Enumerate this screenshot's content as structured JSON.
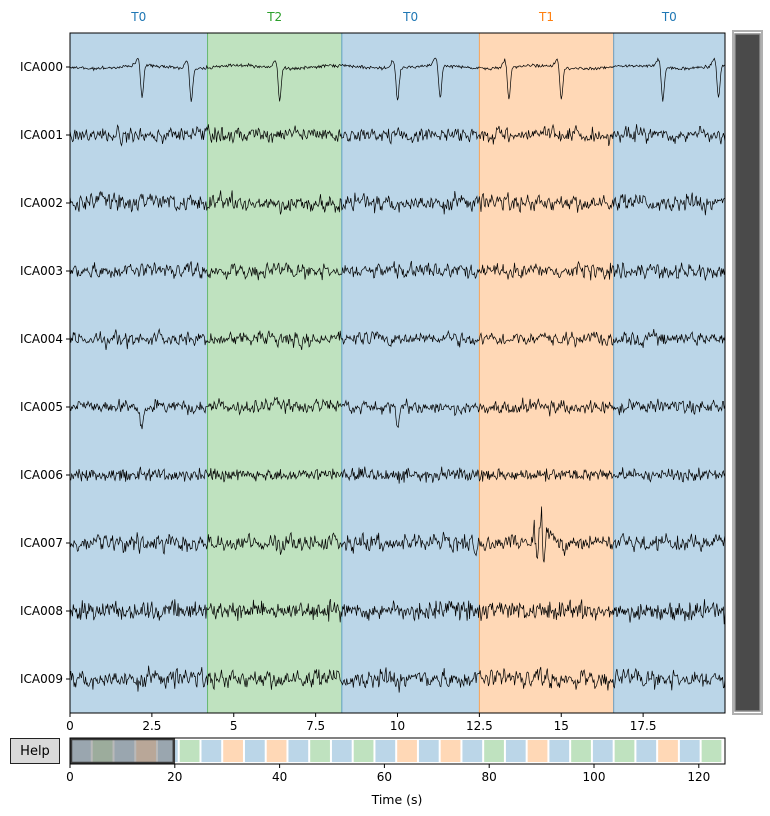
{
  "help_label": "Help",
  "chart_data": [
    {
      "type": "line",
      "name": "ica-sources-browser",
      "xlim": [
        0,
        20
      ],
      "x_ticks": [
        0,
        2.5,
        5,
        7.5,
        10,
        12.5,
        15,
        17.5
      ],
      "x_tick_labels": [
        "0",
        "2.5",
        "5",
        "7.5",
        "10",
        "12.5",
        "15",
        "17.5"
      ],
      "channels": [
        "ICA000",
        "ICA001",
        "ICA002",
        "ICA003",
        "ICA004",
        "ICA005",
        "ICA006",
        "ICA007",
        "ICA008",
        "ICA009"
      ],
      "annotations": [
        {
          "label": "T0",
          "start": 0,
          "end": 4.2,
          "color": "#1f77b4"
        },
        {
          "label": "T2",
          "start": 4.2,
          "end": 8.3,
          "color": "#2ca02c"
        },
        {
          "label": "T0",
          "start": 8.3,
          "end": 12.5,
          "color": "#1f77b4"
        },
        {
          "label": "T1",
          "start": 12.5,
          "end": 16.6,
          "color": "#ff7f0e"
        },
        {
          "label": "T0",
          "start": 16.6,
          "end": 20,
          "color": "#1f77b4"
        }
      ],
      "spikes": [
        {
          "channel": "ICA000",
          "times": [
            2.2,
            3.7,
            6.4,
            10.0,
            11.3,
            13.4,
            15.0,
            18.1,
            19.8
          ]
        },
        {
          "channel": "ICA005",
          "times": [
            2.2,
            10.0
          ]
        }
      ],
      "scrollbar": "vertical, right"
    },
    {
      "type": "bar",
      "name": "overview-timeline",
      "xlim": [
        0,
        125
      ],
      "x_ticks": [
        0,
        20,
        40,
        60,
        80,
        100,
        120
      ],
      "x_tick_labels": [
        "0",
        "20",
        "40",
        "60",
        "80",
        "100",
        "120"
      ],
      "xlabel": "Time (s)",
      "segment_duration": 4.15,
      "segment_labels": [
        "T0",
        "T2",
        "T0",
        "T1",
        "T0",
        "T2",
        "T0",
        "T1",
        "T0",
        "T1",
        "T0",
        "T2",
        "T0",
        "T2",
        "T0",
        "T1",
        "T0",
        "T1",
        "T0",
        "T2",
        "T0",
        "T1",
        "T0",
        "T2",
        "T0",
        "T2",
        "T0",
        "T1",
        "T0",
        "T2"
      ],
      "colors": {
        "T0": "#1f77b4",
        "T1": "#ff7f0e",
        "T2": "#2ca02c"
      },
      "view_window": [
        0,
        20
      ]
    }
  ]
}
